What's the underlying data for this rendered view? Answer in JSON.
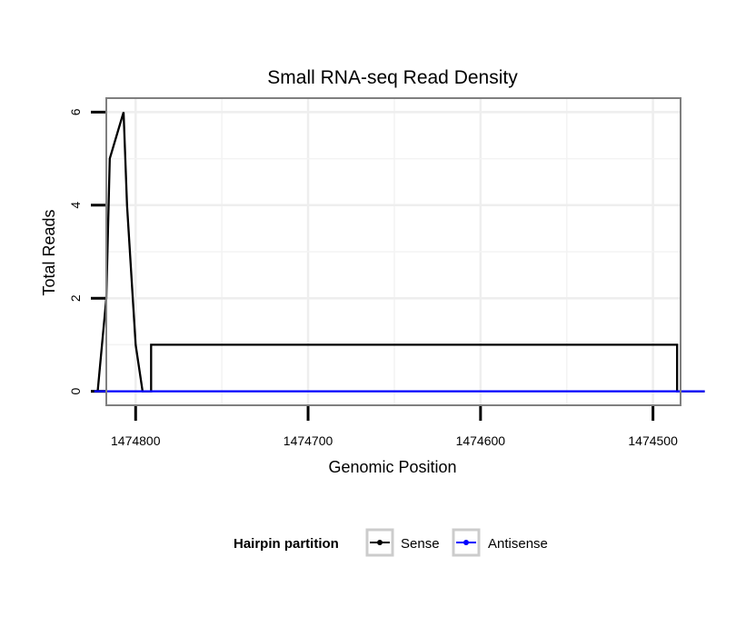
{
  "chart_data": {
    "type": "line",
    "title": "Small RNA-seq Read Density",
    "xlabel": "Genomic Position",
    "ylabel": "Total Reads",
    "x_reversed": true,
    "xlim": [
      1474817,
      1474484
    ],
    "ylim": [
      -0.3,
      6.3
    ],
    "x_ticks": [
      1474800,
      1474700,
      1474600,
      1474500
    ],
    "x_tick_labels": [
      "1474800",
      "1474700",
      "1474600",
      "1474500"
    ],
    "y_ticks": [
      0,
      2,
      4,
      6
    ],
    "y_tick_labels": [
      "0",
      "2",
      "4",
      "6"
    ],
    "grid": true,
    "legend": {
      "title": "Hairpin partition",
      "position": "bottom",
      "entries": [
        "Sense",
        "Antisense"
      ]
    },
    "series": [
      {
        "name": "Sense",
        "color": "#000000",
        "x": [
          1474824,
          1474822,
          1474817,
          1474817,
          1474815,
          1474815,
          1474807,
          1474807,
          1474805,
          1474805,
          1474800,
          1474800,
          1474796,
          1474796,
          1474791,
          1474791,
          1474790,
          1474790,
          1474486,
          1474486,
          1474470,
          1474470
        ],
        "values": [
          0,
          0,
          2,
          2,
          5,
          5,
          6,
          6,
          4,
          4,
          1,
          1,
          0,
          0,
          0,
          1,
          1,
          1,
          1,
          0,
          0,
          0
        ]
      },
      {
        "name": "Antisense",
        "color": "#0000ff",
        "x": [
          1474824,
          1474790,
          1474486,
          1474470
        ],
        "values": [
          0,
          0,
          0,
          0
        ]
      }
    ]
  }
}
